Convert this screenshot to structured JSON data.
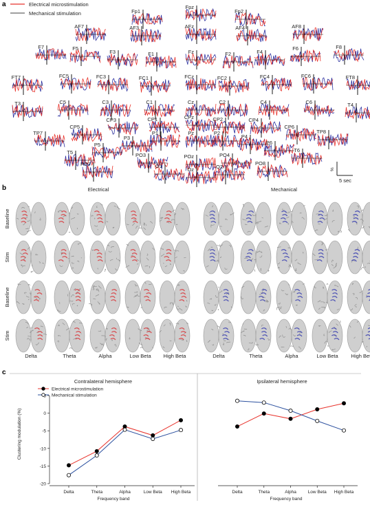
{
  "panel_a": {
    "label": "a",
    "legend": [
      {
        "text": "Electrical microstimulation",
        "color": "#e8322b"
      },
      {
        "text": "Mechanical stimulation",
        "color": "#666666"
      }
    ],
    "channels": [
      "Fp1",
      "Fpz",
      "Fp2",
      "AF7",
      "AF3",
      "AFz",
      "AF4",
      "AF8",
      "F7",
      "F5",
      "F3",
      "F1",
      "Fz",
      "F2",
      "F4",
      "F6",
      "F8",
      "FT7",
      "FC5",
      "FC3",
      "FC1",
      "FCz",
      "FC2",
      "FC4",
      "FC6",
      "FT8",
      "T3",
      "C5",
      "C3",
      "C1",
      "Cz",
      "C2",
      "C4",
      "C6",
      "T4",
      "TP7",
      "CP5",
      "CP3",
      "CP1",
      "CPz",
      "CP2",
      "CP4",
      "CP6",
      "TP8",
      "T5",
      "P5",
      "P3",
      "P1",
      "Pz",
      "P2",
      "P4",
      "P6",
      "T6",
      "PO7",
      "PO3",
      "POz",
      "PO4",
      "PO8",
      "O1",
      "Oz",
      "O2"
    ],
    "scale_y": "%",
    "scale_x": "5 sec",
    "trace_colors": {
      "electrical": "#e8322b",
      "mechanical": "#2b2f9e"
    }
  },
  "panel_b": {
    "label": "b",
    "groups": [
      {
        "title": "Electrical",
        "color": "#d9363a"
      },
      {
        "title": "Mechanical",
        "color": "#3a3fb0"
      }
    ],
    "row_labels": [
      "Baseline",
      "Stim",
      "Baseline",
      "Stim"
    ],
    "bands": [
      "Delta",
      "Theta",
      "Alpha",
      "Low Beta",
      "High Beta"
    ]
  },
  "panel_c": {
    "label": "c",
    "ylabel": "Clustering modulation (%)",
    "xlabel": "Frequency band",
    "legend": [
      "Electrical microstimulation",
      "Mechanical stimulation"
    ]
  },
  "chart_data": [
    {
      "type": "line",
      "title": "Contralateral hemisphere",
      "xlabel": "Frequency band",
      "ylabel": "Clustering modulation (%)",
      "categories": [
        "Delta",
        "Theta",
        "Alpha",
        "Low Beta",
        "High Beta"
      ],
      "ylim": [
        -20,
        5
      ],
      "yticks": [
        -20,
        -15,
        -10,
        -5,
        0,
        5
      ],
      "series": [
        {
          "name": "Electrical microstimulation",
          "color": "#e8322b",
          "marker": "filled",
          "values": [
            -14.8,
            -10.8,
            -3.8,
            -6.3,
            -2.0
          ]
        },
        {
          "name": "Mechanical stimulation",
          "color": "#2a4f9e",
          "marker": "open",
          "values": [
            -17.6,
            -12.0,
            -4.7,
            -7.3,
            -4.8
          ]
        }
      ]
    },
    {
      "type": "line",
      "title": "Ipsilateral hemisphere",
      "xlabel": "Frequency band",
      "ylabel": "",
      "categories": [
        "Delta",
        "Theta",
        "Alpha",
        "Low Beta",
        "High Beta"
      ],
      "ylim": [
        -20,
        5
      ],
      "series": [
        {
          "name": "Electrical microstimulation",
          "color": "#e8322b",
          "marker": "filled",
          "values": [
            -3.8,
            -0.1,
            -1.6,
            1.1,
            2.8
          ]
        },
        {
          "name": "Mechanical stimulation",
          "color": "#2a4f9e",
          "marker": "open",
          "values": [
            3.5,
            3.0,
            0.7,
            -2.2,
            -4.9
          ]
        }
      ]
    }
  ]
}
